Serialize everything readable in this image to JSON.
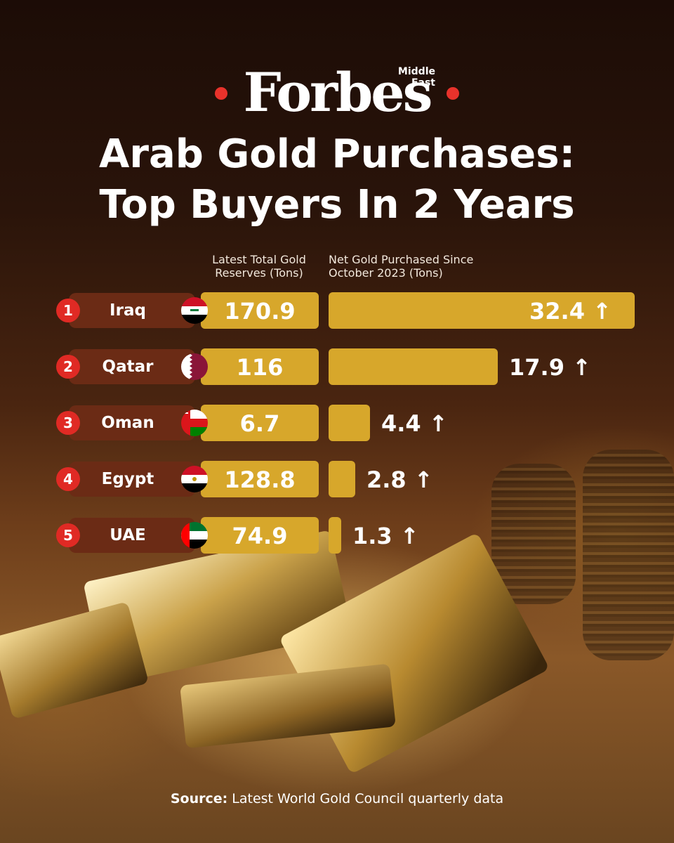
{
  "brand": {
    "logo": "Forbes",
    "edition": "Middle East"
  },
  "title_lines": [
    "Arab Gold Purchases:",
    "Top Buyers In 2 Years"
  ],
  "column_headers": {
    "reserves": [
      "Latest Total Gold",
      "Reserves (Tons)"
    ],
    "net": [
      "Net Gold Purchased Since",
      "October 2023 (Tons)"
    ]
  },
  "arrow": "↑",
  "source": {
    "label": "Source:",
    "text": "Latest World Gold Council quarterly data"
  },
  "colors": {
    "gold": "#d7a72b",
    "rank": "#e02a24",
    "pill": "#6b2b15"
  },
  "chart_data": {
    "type": "bar",
    "orientation": "horizontal",
    "categories": [
      "Iraq",
      "Qatar",
      "Oman",
      "Egypt",
      "UAE"
    ],
    "ranks": [
      "1",
      "2",
      "3",
      "4",
      "5"
    ],
    "series": [
      {
        "name": "Latest Total Gold Reserves (Tons)",
        "values": [
          170.9,
          116,
          6.7,
          128.8,
          74.9
        ],
        "labels": [
          "170.9",
          "116",
          "6.7",
          "128.8",
          "74.9"
        ]
      },
      {
        "name": "Net Gold Purchased Since October 2023 (Tons)",
        "values": [
          32.4,
          17.9,
          4.4,
          2.8,
          1.3
        ],
        "labels": [
          "32.4",
          "17.9",
          "4.4",
          "2.8",
          "1.3"
        ]
      }
    ],
    "flag_icons": [
      "iraq-flag-icon",
      "qatar-flag-icon",
      "oman-flag-icon",
      "egypt-flag-icon",
      "uae-flag-icon"
    ]
  }
}
